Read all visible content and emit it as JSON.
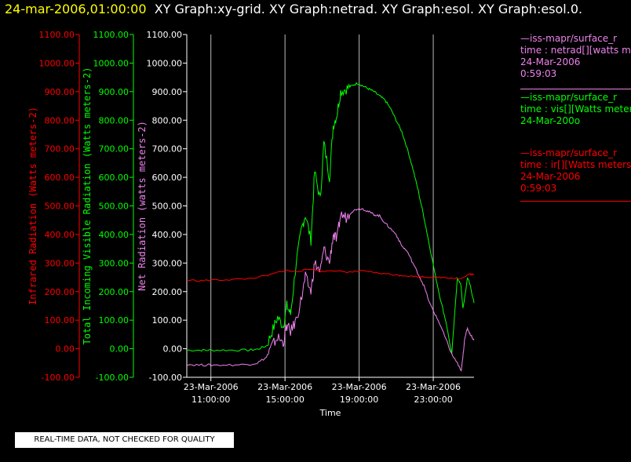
{
  "header": {
    "timestamp": "24-mar-2006,01:00:00",
    "title": "XY Graph:xy-grid.  XY Graph:netrad.  XY Graph:esol.  XY Graph:esol.0."
  },
  "legend": [
    {
      "line1": "—iss-mapr/surface_r",
      "line2": "time : netrad[][watts m",
      "line3": "24-Mar-2006",
      "line4": "0:59:03",
      "color": "#ee82ee"
    },
    {
      "line1": "—iss-mapr/surface_r",
      "line2": "time : vis[][Watts meter",
      "line3": "24-Mar-200o",
      "line4": "",
      "color": "#00ff00"
    },
    {
      "line1": "—iss-mapr/surface_r",
      "line2": "time : ir[][Watts meters",
      "line3": "24-Mar-2006",
      "line4": "0:59:03",
      "color": "#ff0000"
    }
  ],
  "disclaimer": "REAL-TIME DATA, NOT CHECKED FOR QUALITY",
  "chart_data": {
    "type": "line",
    "xlabel": "Time",
    "x_ticks": [
      {
        "date": "23-Mar-2006",
        "time": "11:00:00",
        "hours": 11
      },
      {
        "date": "23-Mar-2006",
        "time": "15:00:00",
        "hours": 15
      },
      {
        "date": "23-Mar-2006",
        "time": "19:00:00",
        "hours": 19
      },
      {
        "date": "23-Mar-2006",
        "time": "23:00:00",
        "hours": 23
      }
    ],
    "xlim_hours": [
      9.7,
      25.2
    ],
    "ylim": [
      -100,
      1100
    ],
    "y_ticks": [
      "-100.00",
      "0.00",
      "100.00",
      "200.00",
      "300.00",
      "400.00",
      "500.00",
      "600.00",
      "700.00",
      "800.00",
      "900.00",
      "1000.00",
      "1100.00"
    ],
    "y_axes": [
      {
        "label": "Infrared Radiation (Watts meters-2)",
        "color": "#ff0000"
      },
      {
        "label": "Total Incoming Visible Radiation (Watts meters-2)",
        "color": "#00ff00"
      },
      {
        "label": "Net Radiation (watts meters-2)",
        "color": "#ee82ee"
      }
    ],
    "grid": "vertical lines at x ticks",
    "series": [
      {
        "axis": 1,
        "color": "#00ff00",
        "x": [
          9.7,
          10.5,
          11,
          12,
          13,
          13.5,
          14,
          14.3,
          14.6,
          14.9,
          15.1,
          15.3,
          15.6,
          15.9,
          16.1,
          16.4,
          16.6,
          16.9,
          17.1,
          17.4,
          17.6,
          17.8,
          18.0,
          18.3,
          18.6,
          18.9,
          19.2,
          19.5,
          19.8,
          20.1,
          20.4,
          20.7,
          21.0,
          21.3,
          21.6,
          21.9,
          22.2,
          22.5,
          22.8,
          23.1,
          23.4,
          23.7,
          24.0,
          24.3,
          24.5,
          24.6,
          24.7,
          24.85,
          25.0,
          25.2
        ],
        "y": [
          -5,
          -5,
          -5,
          -5,
          -5,
          -2,
          10,
          60,
          110,
          80,
          150,
          120,
          300,
          420,
          470,
          380,
          620,
          520,
          720,
          600,
          780,
          820,
          900,
          910,
          920,
          930,
          920,
          910,
          900,
          885,
          870,
          840,
          800,
          760,
          700,
          630,
          550,
          460,
          360,
          260,
          170,
          90,
          -20,
          250,
          220,
          140,
          180,
          250,
          220,
          160
        ]
      },
      {
        "axis": 2,
        "color": "#ee82ee",
        "x": [
          9.7,
          10.5,
          11,
          12,
          13,
          13.5,
          14,
          14.3,
          14.6,
          14.9,
          15.1,
          15.3,
          15.6,
          15.9,
          16.1,
          16.4,
          16.6,
          16.9,
          17.1,
          17.4,
          17.6,
          17.8,
          18.0,
          18.3,
          18.6,
          18.9,
          19.2,
          19.5,
          19.8,
          20.1,
          20.4,
          20.7,
          21.0,
          21.3,
          21.6,
          21.9,
          22.2,
          22.5,
          22.8,
          23.1,
          23.4,
          23.7,
          24.0,
          24.3,
          24.5,
          24.6,
          24.7,
          24.85,
          25.0,
          25.2
        ],
        "y": [
          -55,
          -57,
          -57,
          -57,
          -55,
          -50,
          -30,
          10,
          40,
          20,
          80,
          60,
          100,
          180,
          250,
          200,
          300,
          270,
          350,
          300,
          400,
          380,
          470,
          460,
          480,
          490,
          490,
          480,
          470,
          465,
          440,
          420,
          400,
          360,
          340,
          300,
          260,
          220,
          160,
          120,
          80,
          30,
          -20,
          -50,
          -80,
          -30,
          40,
          70,
          50,
          30
        ]
      },
      {
        "axis": 0,
        "color": "#ff0000",
        "x": [
          9.7,
          10.5,
          11,
          12,
          13,
          14,
          14.5,
          15,
          15.5,
          16,
          16.5,
          17,
          17.5,
          18,
          18.5,
          19,
          19.5,
          20,
          20.5,
          21,
          21.5,
          22,
          22.5,
          23,
          23.5,
          24,
          24.5,
          25,
          25.2
        ],
        "y": [
          240,
          238,
          240,
          242,
          245,
          255,
          265,
          275,
          270,
          275,
          280,
          270,
          275,
          270,
          268,
          272,
          270,
          265,
          262,
          258,
          256,
          253,
          252,
          250,
          250,
          248,
          245,
          262,
          258
        ]
      }
    ]
  }
}
